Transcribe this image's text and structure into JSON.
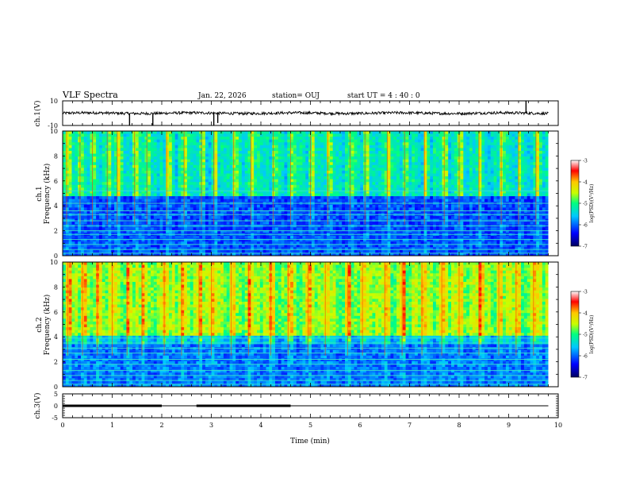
{
  "header": {
    "title": "VLF Spectra",
    "date": "Jan. 22, 2026",
    "station": "station= OUJ",
    "start": "start UT =  4 : 40 : 0"
  },
  "chart_data": [
    {
      "type": "line",
      "name": "ch1-waveform",
      "ylabel": "ch.1(V)",
      "ylim": [
        -10,
        10
      ],
      "yticks": [
        "10",
        "-10"
      ],
      "x": [
        0,
        1,
        2,
        3,
        4,
        5,
        6,
        7,
        8,
        9,
        9.8
      ],
      "y": [
        0,
        0.2,
        -0.1,
        0.3,
        0,
        -0.2,
        0.1,
        0,
        0.2,
        -0.1,
        0
      ],
      "spikes": [
        {
          "x": 1.35,
          "y": -10
        },
        {
          "x": 1.82,
          "y": -10
        },
        {
          "x": 3.05,
          "y": -10
        },
        {
          "x": 3.13,
          "y": -8
        },
        {
          "x": 9.35,
          "y": 10
        }
      ]
    },
    {
      "type": "heatmap",
      "name": "ch1-spectrogram",
      "ylabel": "ch.1\nFrequency (kHz)",
      "ylim": [
        0,
        10
      ],
      "yticks": [
        "0",
        "2",
        "4",
        "6",
        "8",
        "10"
      ],
      "colorbar": {
        "label": "log(PSD)(V²/Hz)",
        "ticks": [
          "-3",
          "-4",
          "-5",
          "-6",
          "-7"
        ],
        "range": [
          -7,
          -3
        ]
      },
      "horizontal_lines_khz": [
        0.2,
        0.5,
        0.9,
        1.3,
        1.7,
        2.0,
        2.4,
        2.8,
        3.3,
        3.6,
        4.2,
        5.2
      ],
      "vertical_bursts_min": [
        0.08,
        0.35,
        0.6,
        0.9,
        1.1,
        1.45,
        1.7,
        2.1,
        2.45,
        2.8,
        3.05,
        3.45,
        3.8,
        4.25,
        4.6,
        5.0,
        5.35,
        5.8,
        6.1,
        6.55,
        6.9,
        7.3,
        7.7,
        8.0,
        8.4,
        8.85,
        9.2,
        9.55
      ]
    },
    {
      "type": "heatmap",
      "name": "ch2-spectrogram",
      "ylabel": "ch.2\nFrequency (kHz)",
      "ylim": [
        0,
        10
      ],
      "yticks": [
        "0",
        "2",
        "4",
        "6",
        "8",
        "10"
      ],
      "colorbar": {
        "label": "log(PSD)(V²/Hz)",
        "ticks": [
          "-3",
          "-4",
          "-5",
          "-6",
          "-7"
        ],
        "range": [
          -7,
          -3
        ]
      },
      "horizontal_lines_khz": [
        0.2,
        0.5,
        0.9,
        1.3,
        1.8,
        2.2,
        2.7,
        3.1,
        3.5,
        3.9
      ],
      "vertical_bursts_min": [
        0.1,
        0.4,
        0.7,
        1.0,
        1.3,
        1.6,
        2.05,
        2.4,
        2.75,
        3.0,
        3.4,
        3.75,
        4.2,
        4.55,
        4.95,
        5.3,
        5.75,
        6.05,
        6.5,
        6.85,
        7.25,
        7.65,
        8.0,
        8.4,
        8.8,
        9.15,
        9.5
      ]
    },
    {
      "type": "line",
      "name": "ch3-waveform",
      "ylabel": "ch.3(V)",
      "ylim": [
        -5,
        5
      ],
      "yticks": [
        "5",
        "0",
        "-5"
      ],
      "x": [
        0,
        9.8
      ],
      "y": [
        0,
        0
      ],
      "thick_segments_min": [
        [
          0,
          2.0
        ],
        [
          2.7,
          4.6
        ]
      ]
    }
  ],
  "xaxis": {
    "label": "Time (min)",
    "range": [
      0,
      10
    ],
    "ticks": [
      "0",
      "1",
      "2",
      "3",
      "4",
      "5",
      "6",
      "7",
      "8",
      "9",
      "10"
    ]
  }
}
